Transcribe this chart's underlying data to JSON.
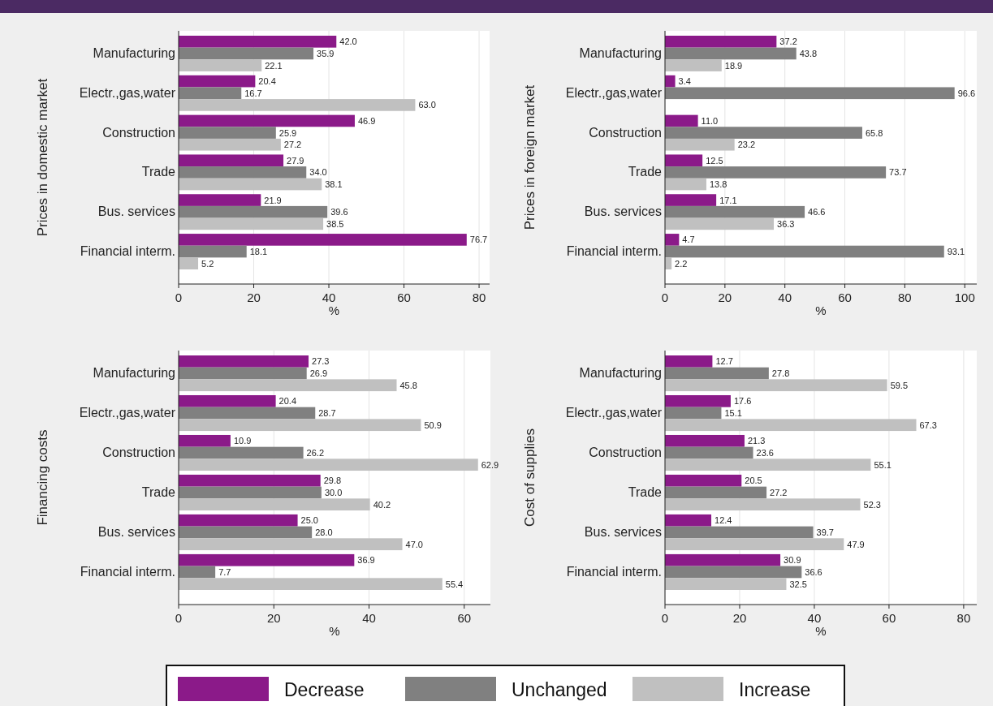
{
  "chart_data": [
    {
      "type": "bar",
      "orientation": "horizontal",
      "ylabel": "Prices in domestic market",
      "xlabel": "%",
      "categories": [
        "Manufacturing",
        "Electr.,gas,water",
        "Construction",
        "Trade",
        "Bus. services",
        "Financial interm."
      ],
      "xlim": [
        0,
        82.8
      ],
      "xticks": [
        0,
        20,
        40,
        60,
        80
      ],
      "grid": "x",
      "series": [
        {
          "color": "#8b1a89",
          "values": [
            42.0,
            20.4,
            46.9,
            27.9,
            21.9,
            76.7
          ],
          "value_labels": [
            "42.0",
            "20.4",
            "46.9",
            "27.9",
            "21.9",
            "76.7"
          ]
        },
        {
          "color": "#808080",
          "values": [
            35.9,
            16.7,
            25.9,
            34.0,
            39.6,
            18.1
          ],
          "value_labels": [
            "35.9",
            "16.7",
            "25.9",
            "34.0",
            "39.6",
            "18.1"
          ]
        },
        {
          "color": "#c0c0c0",
          "values": [
            22.1,
            63.0,
            27.2,
            38.1,
            38.5,
            5.2
          ],
          "value_labels": [
            "22.1",
            "63.0",
            "27.2",
            "38.1",
            "38.5",
            "5.2"
          ]
        }
      ]
    },
    {
      "type": "bar",
      "orientation": "horizontal",
      "ylabel": "Prices in foreign market",
      "xlabel": "%",
      "categories": [
        "Manufacturing",
        "Electr.,gas,water",
        "Construction",
        "Trade",
        "Bus. services",
        "Financial interm."
      ],
      "xlim": [
        0,
        104
      ],
      "xticks": [
        0,
        20,
        40,
        60,
        80,
        100
      ],
      "grid": "x",
      "series": [
        {
          "color": "#8b1a89",
          "values": [
            37.2,
            3.4,
            11.0,
            12.5,
            17.1,
            4.7
          ],
          "value_labels": [
            "37.2",
            "3.4",
            "11.0",
            "12.5",
            "17.1",
            "4.7"
          ]
        },
        {
          "color": "#808080",
          "values": [
            43.8,
            96.6,
            65.8,
            73.7,
            46.6,
            93.1
          ],
          "value_labels": [
            "43.8",
            "96.6",
            "65.8",
            "73.7",
            "46.6",
            "93.1"
          ]
        },
        {
          "color": "#c0c0c0",
          "values": [
            18.9,
            null,
            23.2,
            13.8,
            36.3,
            2.2
          ],
          "value_labels": [
            "18.9",
            null,
            "23.2",
            "13.8",
            "36.3",
            "2.2"
          ]
        }
      ]
    },
    {
      "type": "bar",
      "orientation": "horizontal",
      "ylabel": "Financing costs",
      "xlabel": "%",
      "categories": [
        "Manufacturing",
        "Electr.,gas,water",
        "Construction",
        "Trade",
        "Bus. services",
        "Financial interm."
      ],
      "xlim": [
        0,
        65.5
      ],
      "xticks": [
        0,
        20,
        40,
        60
      ],
      "grid": "x",
      "series": [
        {
          "color": "#8b1a89",
          "values": [
            27.3,
            20.4,
            10.9,
            29.8,
            25.0,
            36.9
          ],
          "value_labels": [
            "27.3",
            "20.4",
            "10.9",
            "29.8",
            "25.0",
            "36.9"
          ]
        },
        {
          "color": "#808080",
          "values": [
            26.9,
            28.7,
            26.2,
            30.0,
            28.0,
            7.7
          ],
          "value_labels": [
            "26.9",
            "28.7",
            "26.2",
            "30.0",
            "28.0",
            "7.7"
          ]
        },
        {
          "color": "#c0c0c0",
          "values": [
            45.8,
            50.9,
            62.9,
            40.2,
            47.0,
            55.4
          ],
          "value_labels": [
            "45.8",
            "50.9",
            "62.9",
            "40.2",
            "47.0",
            "55.4"
          ]
        }
      ]
    },
    {
      "type": "bar",
      "orientation": "horizontal",
      "ylabel": "Cost of supplies",
      "xlabel": "%",
      "categories": [
        "Manufacturing",
        "Electr.,gas,water",
        "Construction",
        "Trade",
        "Bus. services",
        "Financial interm."
      ],
      "xlim": [
        0,
        83.5
      ],
      "xticks": [
        0,
        20,
        40,
        60,
        80
      ],
      "grid": "x",
      "legend": "bottom",
      "series": [
        {
          "name": "Decrease",
          "color": "#8b1a89",
          "values": [
            12.7,
            17.6,
            21.3,
            20.5,
            12.4,
            30.9
          ],
          "value_labels": [
            "12.7",
            "17.6",
            "21.3",
            "20.5",
            "12.4",
            "30.9"
          ]
        },
        {
          "name": "Unchanged",
          "color": "#808080",
          "values": [
            27.8,
            15.1,
            23.6,
            27.2,
            39.7,
            36.6
          ],
          "value_labels": [
            "27.8",
            "15.1",
            "23.6",
            "27.2",
            "39.7",
            "36.6"
          ]
        },
        {
          "name": "Increase",
          "color": "#c0c0c0",
          "values": [
            59.5,
            67.3,
            55.1,
            52.3,
            47.9,
            32.5
          ],
          "value_labels": [
            "59.5",
            "67.3",
            "55.1",
            "52.3",
            "47.9",
            "32.5"
          ]
        }
      ]
    }
  ]
}
